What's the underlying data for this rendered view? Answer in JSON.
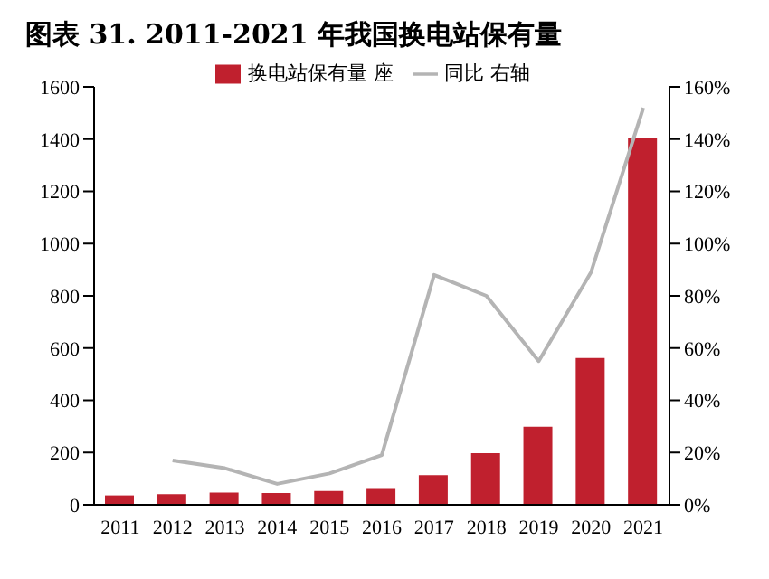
{
  "chart_data": {
    "type": "bar",
    "title": "图表 31. 2011-2021 年我国换电站保有量",
    "categories": [
      "2011",
      "2012",
      "2013",
      "2014",
      "2015",
      "2016",
      "2017",
      "2018",
      "2019",
      "2020",
      "2021"
    ],
    "series": [
      {
        "name": "换电站保有量 座",
        "color": "#c0202e",
        "values": [
          36,
          41,
          47,
          45,
          53,
          64,
          113,
          197,
          299,
          562,
          1406
        ]
      },
      {
        "name": "同比 右轴",
        "type": "line",
        "axis": "y2",
        "color": "#b4b4b4",
        "marker": "none",
        "values": [
          null,
          17,
          14,
          8,
          12,
          19,
          88,
          80,
          55,
          89,
          152
        ]
      }
    ],
    "ylim": [
      0,
      1600
    ],
    "yticks": [
      0,
      200,
      400,
      600,
      800,
      1000,
      1200,
      1400,
      1600
    ],
    "y2lim": [
      0,
      160
    ],
    "y2ticks": [
      {
        "value": 0,
        "label": "0%"
      },
      {
        "value": 20,
        "label": "20%"
      },
      {
        "value": 40,
        "label": "40%"
      },
      {
        "value": 60,
        "label": "60%"
      },
      {
        "value": 80,
        "label": "80%"
      },
      {
        "value": 100,
        "label": "100%"
      },
      {
        "value": 120,
        "label": "120%"
      },
      {
        "value": 140,
        "label": "140%"
      },
      {
        "value": 160,
        "label": "160%"
      }
    ],
    "legend": "top",
    "grid": false
  }
}
